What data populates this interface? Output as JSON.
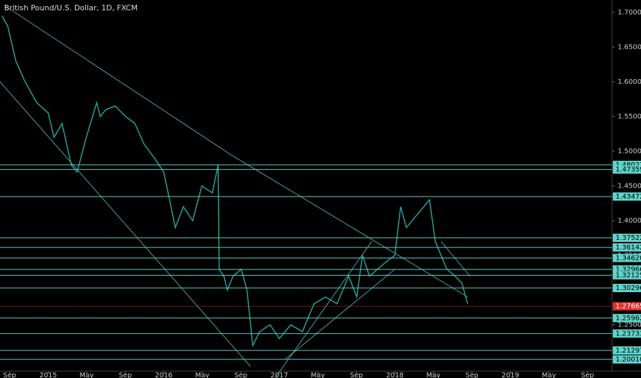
{
  "chart_data": {
    "type": "line",
    "title": "British Pound/U.S. Dollar, 1D, FXCM",
    "color": "#26a69a",
    "level_color": "#5fd3c9",
    "current_color": "#e0302f",
    "xlim": [
      2014.583,
      2019.88
    ],
    "ylim": [
      1.1832,
      1.7178
    ],
    "xticks": [
      {
        "value": 2014.667,
        "label": "Sep"
      },
      {
        "value": 2015,
        "label": "2015"
      },
      {
        "value": 2015.333,
        "label": "May"
      },
      {
        "value": 2015.667,
        "label": "Sep"
      },
      {
        "value": 2016,
        "label": "2016"
      },
      {
        "value": 2016.333,
        "label": "May"
      },
      {
        "value": 2016.667,
        "label": "Sep"
      },
      {
        "value": 2017,
        "label": "2017"
      },
      {
        "value": 2017.333,
        "label": "May"
      },
      {
        "value": 2017.667,
        "label": "Sep"
      },
      {
        "value": 2018,
        "label": "2018"
      },
      {
        "value": 2018.333,
        "label": "May"
      },
      {
        "value": 2018.667,
        "label": "Sep"
      },
      {
        "value": 2019,
        "label": "2019"
      },
      {
        "value": 2019.333,
        "label": "May"
      },
      {
        "value": 2019.667,
        "label": "Sep"
      }
    ],
    "yticks": [
      {
        "value": 1.7,
        "label": "1.70000"
      },
      {
        "value": 1.65,
        "label": "1.65000"
      },
      {
        "value": 1.6,
        "label": "1.60000"
      },
      {
        "value": 1.55,
        "label": "1.55000"
      },
      {
        "value": 1.5,
        "label": "1.50000"
      },
      {
        "value": 1.45,
        "label": "1.45000"
      },
      {
        "value": 1.4,
        "label": "1.40000"
      },
      {
        "value": 1.35,
        "label": "1.35000"
      },
      {
        "value": 1.3,
        "label": "1.30000"
      },
      {
        "value": 1.25,
        "label": "1.25000"
      },
      {
        "value": 1.2,
        "label": "1.20000"
      }
    ],
    "x": [
      2014.6,
      2014.65,
      2014.72,
      2014.8,
      2014.9,
      2015.0,
      2015.05,
      2015.12,
      2015.2,
      2015.25,
      2015.33,
      2015.42,
      2015.45,
      2015.5,
      2015.58,
      2015.67,
      2015.75,
      2015.83,
      2015.92,
      2016.0,
      2016.05,
      2016.1,
      2016.17,
      2016.25,
      2016.33,
      2016.42,
      2016.47,
      2016.48,
      2016.52,
      2016.55,
      2016.6,
      2016.67,
      2016.72,
      2016.77,
      2016.83,
      2016.92,
      2017.0,
      2017.05,
      2017.1,
      2017.2,
      2017.3,
      2017.4,
      2017.5,
      2017.55,
      2017.6,
      2017.67,
      2017.72,
      2017.78,
      2017.85,
      2017.92,
      2018.0,
      2018.05,
      2018.1,
      2018.2,
      2018.3,
      2018.35,
      2018.4,
      2018.45,
      2018.52,
      2018.58,
      2018.63
    ],
    "values": [
      1.695,
      1.68,
      1.63,
      1.6,
      1.57,
      1.555,
      1.52,
      1.54,
      1.48,
      1.47,
      1.52,
      1.57,
      1.55,
      1.56,
      1.565,
      1.55,
      1.54,
      1.51,
      1.49,
      1.47,
      1.43,
      1.39,
      1.42,
      1.4,
      1.45,
      1.44,
      1.48,
      1.33,
      1.32,
      1.3,
      1.32,
      1.33,
      1.3,
      1.22,
      1.24,
      1.25,
      1.23,
      1.24,
      1.25,
      1.24,
      1.28,
      1.29,
      1.28,
      1.3,
      1.32,
      1.29,
      1.35,
      1.32,
      1.33,
      1.34,
      1.35,
      1.42,
      1.39,
      1.41,
      1.43,
      1.37,
      1.35,
      1.33,
      1.32,
      1.31,
      1.28
    ],
    "levels": [
      1.48027,
      1.47359,
      1.43472,
      1.37522,
      1.36142,
      {
        "value": 1.3462,
        "label": "1.34620"
      },
      1.32966,
      1.32125,
      1.30296,
      1.25962,
      1.23733,
      1.21297,
      {
        "value": 1.2001,
        "label": "1.20010"
      }
    ],
    "current": 1.27665,
    "trendlines": [
      {
        "x": [
          2014.62,
          2016.58
        ],
        "y": [
          1.71,
          1.495
        ]
      },
      {
        "x": [
          2016.58,
          2018.63
        ],
        "y": [
          1.495,
          1.29
        ]
      },
      {
        "x": [
          2014.583,
          2016.75
        ],
        "y": [
          1.6,
          1.19
        ]
      },
      {
        "x": [
          2016.95,
          2017.8
        ],
        "y": [
          1.17,
          1.37
        ]
      },
      {
        "x": [
          2017.05,
          2018.0
        ],
        "y": [
          1.2,
          1.33
        ]
      },
      {
        "x": [
          2018.4,
          2018.65
        ],
        "y": [
          1.37,
          1.32
        ]
      }
    ]
  }
}
